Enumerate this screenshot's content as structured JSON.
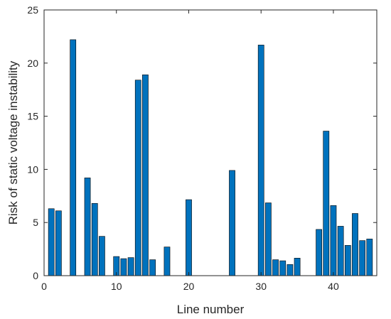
{
  "chart_data": {
    "type": "bar",
    "xlabel": "Line number",
    "ylabel": "Risk of static voltage instability",
    "xlim": [
      0,
      46
    ],
    "ylim": [
      0,
      25
    ],
    "xticks": [
      0,
      10,
      20,
      30,
      40
    ],
    "yticks": [
      0,
      5,
      10,
      15,
      20,
      25
    ],
    "grid": false,
    "bar_color": "#0072BD",
    "x": [
      1,
      2,
      4,
      6,
      7,
      8,
      10,
      11,
      12,
      13,
      14,
      15,
      17,
      20,
      26,
      30,
      31,
      32,
      33,
      34,
      35,
      38,
      39,
      40,
      41,
      42,
      43,
      44,
      45
    ],
    "values": [
      6.3,
      6.1,
      22.2,
      9.2,
      6.8,
      3.7,
      1.8,
      1.6,
      1.7,
      18.4,
      18.9,
      1.5,
      2.7,
      7.15,
      9.9,
      21.7,
      6.85,
      1.5,
      1.4,
      1.05,
      1.65,
      4.35,
      13.6,
      6.6,
      4.65,
      2.85,
      5.85,
      3.3,
      3.45
    ]
  }
}
